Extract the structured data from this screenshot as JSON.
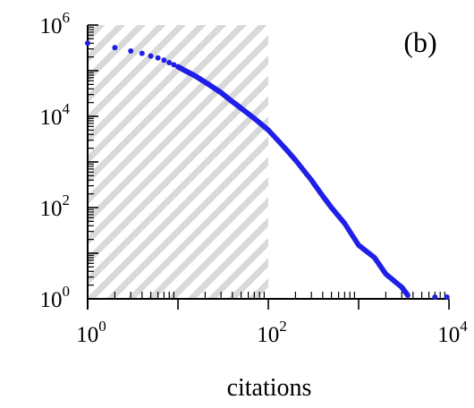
{
  "chart_data": {
    "type": "scatter",
    "panel_label": "(b)",
    "title": "",
    "xlabel": "citations",
    "ylabel": "",
    "x_scale": "log",
    "y_scale": "log",
    "xlim": [
      1,
      10000
    ],
    "ylim": [
      1,
      1000000
    ],
    "x_ticks": [
      {
        "value": 1,
        "base": "10",
        "exp": "0"
      },
      {
        "value": 100,
        "base": "10",
        "exp": "2"
      },
      {
        "value": 10000,
        "base": "10",
        "exp": "4"
      }
    ],
    "y_ticks": [
      {
        "value": 1,
        "base": "10",
        "exp": "0"
      },
      {
        "value": 100,
        "base": "10",
        "exp": "2"
      },
      {
        "value": 10000,
        "base": "10",
        "exp": "4"
      },
      {
        "value": 1000000,
        "base": "10",
        "exp": "6"
      }
    ],
    "grid": false,
    "shaded_region": {
      "x_from": 1,
      "x_to": 100,
      "pattern": "diagonal hatching",
      "color": "#d9d9d9"
    },
    "marker_color": "#1f1fe8",
    "series": [
      {
        "x": [
          1,
          2,
          3,
          4,
          5,
          6,
          7,
          8,
          9,
          10,
          12,
          15,
          20,
          25,
          30,
          40,
          50,
          70,
          100,
          150,
          200,
          300,
          400,
          500,
          700,
          1000,
          1500,
          2000,
          3000,
          3500,
          7000,
          9500
        ],
        "y": [
          400000,
          320000,
          270000,
          240000,
          210000,
          190000,
          170000,
          150000,
          135000,
          122000,
          100000,
          80000,
          56000,
          42000,
          33000,
          21000,
          15000,
          9000,
          5000,
          2100,
          1100,
          400,
          180,
          100,
          45,
          15,
          8,
          3.5,
          1.8,
          1.2,
          1.0,
          0.8
        ]
      }
    ]
  }
}
